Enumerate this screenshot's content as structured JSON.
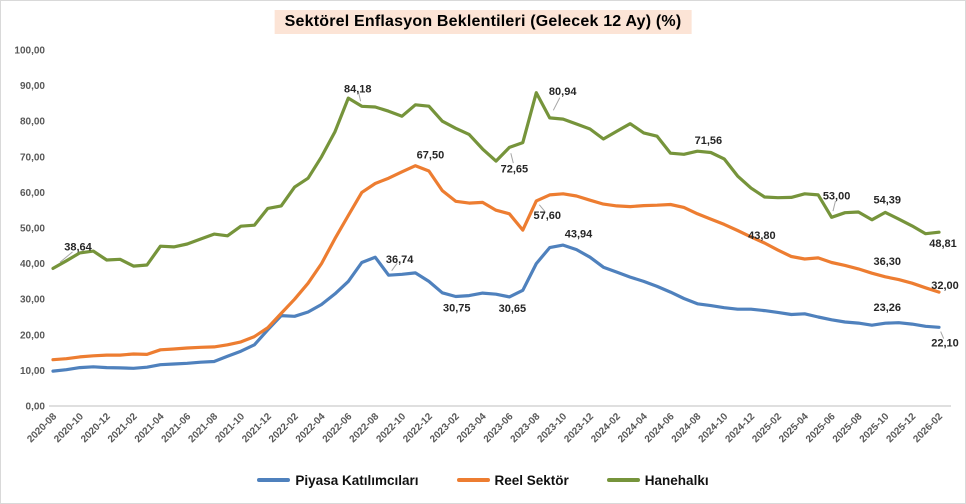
{
  "title": "Sektörel Enflasyon Beklentileri (Gelecek 12 Ay) (%)",
  "colors": {
    "piyasa": "#4F81BD",
    "reel": "#ED7D31",
    "hane": "#76943B",
    "title_background": "#FCE4D6",
    "axis_text": "#595959",
    "axis_line": "#BFBFBF",
    "leader_line": "#A6A6A6"
  },
  "legend": [
    {
      "key": "piyasa",
      "label": "Piyasa Katılımcıları"
    },
    {
      "key": "reel",
      "label": "Reel Sektör"
    },
    {
      "key": "hane",
      "label": "Hanehalkı"
    }
  ],
  "axis": {
    "y_tick_labels": [
      "0,00",
      "10,00",
      "20,00",
      "30,00",
      "40,00",
      "50,00",
      "60,00",
      "70,00",
      "80,00",
      "90,00",
      "100,00"
    ],
    "x_tick_interval": 2
  },
  "chart_data": {
    "type": "line",
    "title": "Sektörel Enflasyon Beklentileri (Gelecek 12 Ay) (%)",
    "xlabel": "",
    "ylabel": "",
    "ylim": [
      0,
      100
    ],
    "grid": false,
    "legend_position": "bottom",
    "x": [
      "2020-08",
      "2020-09",
      "2020-10",
      "2020-11",
      "2020-12",
      "2021-01",
      "2021-02",
      "2021-03",
      "2021-04",
      "2021-05",
      "2021-06",
      "2021-07",
      "2021-08",
      "2021-09",
      "2021-10",
      "2021-11",
      "2021-12",
      "2022-01",
      "2022-02",
      "2022-03",
      "2022-04",
      "2022-05",
      "2022-06",
      "2022-07",
      "2022-08",
      "2022-09",
      "2022-10",
      "2022-11",
      "2022-12",
      "2023-01",
      "2023-02",
      "2023-03",
      "2023-04",
      "2023-05",
      "2023-06",
      "2023-07",
      "2023-08",
      "2023-09",
      "2023-10",
      "2023-11",
      "2023-12",
      "2024-01",
      "2024-02",
      "2024-03",
      "2024-04",
      "2024-05",
      "2024-06",
      "2024-07",
      "2024-08",
      "2024-09",
      "2024-10",
      "2024-11",
      "2024-12",
      "2025-01",
      "2025-02",
      "2025-03",
      "2025-04",
      "2025-05",
      "2025-06",
      "2025-07",
      "2025-08",
      "2025-09",
      "2025-10",
      "2025-11",
      "2025-12",
      "2026-01",
      "2026-02"
    ],
    "series": [
      {
        "key": "piyasa",
        "name": "Piyasa Katılımcıları",
        "values": [
          9.8,
          10.2,
          10.8,
          11.0,
          10.8,
          10.7,
          10.6,
          10.9,
          11.6,
          11.8,
          12.0,
          12.3,
          12.5,
          14.0,
          15.4,
          17.2,
          21.4,
          25.4,
          25.2,
          26.4,
          28.5,
          31.5,
          35.0,
          40.3,
          41.8,
          36.74,
          37.0,
          37.4,
          35.0,
          31.8,
          30.75,
          31.0,
          31.7,
          31.4,
          30.65,
          32.5,
          40.0,
          44.5,
          45.2,
          43.94,
          41.8,
          39.0,
          37.6,
          36.2,
          35.0,
          33.6,
          32.0,
          30.2,
          28.7,
          28.2,
          27.6,
          27.2,
          27.2,
          26.8,
          26.3,
          25.7,
          25.9,
          25.0,
          24.2,
          23.6,
          23.3,
          22.7,
          23.26,
          23.4,
          23.0,
          22.4,
          22.1
        ]
      },
      {
        "key": "reel",
        "name": "Reel Sektör",
        "values": [
          13.0,
          13.3,
          13.8,
          14.1,
          14.3,
          14.3,
          14.6,
          14.5,
          15.8,
          16.0,
          16.3,
          16.5,
          16.6,
          17.2,
          18.0,
          19.5,
          22.0,
          26.0,
          30.0,
          34.5,
          40.0,
          47.0,
          53.5,
          60.0,
          62.5,
          64.0,
          65.8,
          67.5,
          66.0,
          60.5,
          57.5,
          57.0,
          57.2,
          55.0,
          54.0,
          49.4,
          57.6,
          59.3,
          59.6,
          59.0,
          57.8,
          56.7,
          56.2,
          56.0,
          56.3,
          56.4,
          56.6,
          55.8,
          54.0,
          52.5,
          51.0,
          49.3,
          47.5,
          45.8,
          43.8,
          42.0,
          41.3,
          41.6,
          40.3,
          39.5,
          38.5,
          37.3,
          36.3,
          35.5,
          34.5,
          33.2,
          32.0
        ]
      },
      {
        "key": "hane",
        "name": "Hanehalkı",
        "values": [
          38.64,
          40.8,
          43.0,
          43.5,
          41.0,
          41.2,
          39.3,
          39.6,
          44.9,
          44.7,
          45.5,
          46.9,
          48.3,
          47.8,
          50.5,
          50.8,
          55.5,
          56.2,
          61.5,
          64.0,
          70.0,
          77.0,
          86.5,
          84.18,
          84.0,
          82.8,
          81.4,
          84.6,
          84.2,
          80.0,
          78.0,
          76.3,
          72.2,
          68.8,
          72.65,
          74.0,
          88.0,
          80.94,
          80.6,
          79.2,
          77.8,
          75.0,
          77.2,
          79.3,
          76.7,
          75.8,
          71.0,
          70.7,
          71.56,
          71.2,
          69.4,
          64.6,
          61.2,
          58.7,
          58.5,
          58.6,
          59.6,
          59.3,
          53.0,
          54.3,
          54.5,
          52.3,
          54.39,
          52.5,
          50.6,
          48.4,
          48.81
        ]
      }
    ],
    "data_labels": [
      {
        "series": "hane",
        "x": "2020-08",
        "text": "38,64"
      },
      {
        "series": "hane",
        "x": "2022-07",
        "text": "84,18"
      },
      {
        "series": "reel",
        "x": "2022-11",
        "text": "67,50"
      },
      {
        "series": "piyasa",
        "x": "2022-09",
        "text": "36,74"
      },
      {
        "series": "piyasa",
        "x": "2023-02",
        "text": "30,75"
      },
      {
        "series": "piyasa",
        "x": "2023-06",
        "text": "30,65"
      },
      {
        "series": "hane",
        "x": "2023-06",
        "text": "72,65"
      },
      {
        "series": "reel",
        "x": "2023-08",
        "text": "57,60"
      },
      {
        "series": "hane",
        "x": "2023-09",
        "text": "80,94"
      },
      {
        "series": "piyasa",
        "x": "2023-11",
        "text": "43,94"
      },
      {
        "series": "hane",
        "x": "2024-08",
        "text": "71,56"
      },
      {
        "series": "reel",
        "x": "2025-02",
        "text": "43,80"
      },
      {
        "series": "hane",
        "x": "2025-06",
        "text": "53,00"
      },
      {
        "series": "hane",
        "x": "2025-10",
        "text": "54,39"
      },
      {
        "series": "reel",
        "x": "2025-10",
        "text": "36,30"
      },
      {
        "series": "piyasa",
        "x": "2025-10",
        "text": "23,26"
      },
      {
        "series": "hane",
        "x": "2026-02",
        "text": "48,81"
      },
      {
        "series": "reel",
        "x": "2026-02",
        "text": "32,00"
      },
      {
        "series": "piyasa",
        "x": "2026-02",
        "text": "22,10"
      }
    ]
  }
}
